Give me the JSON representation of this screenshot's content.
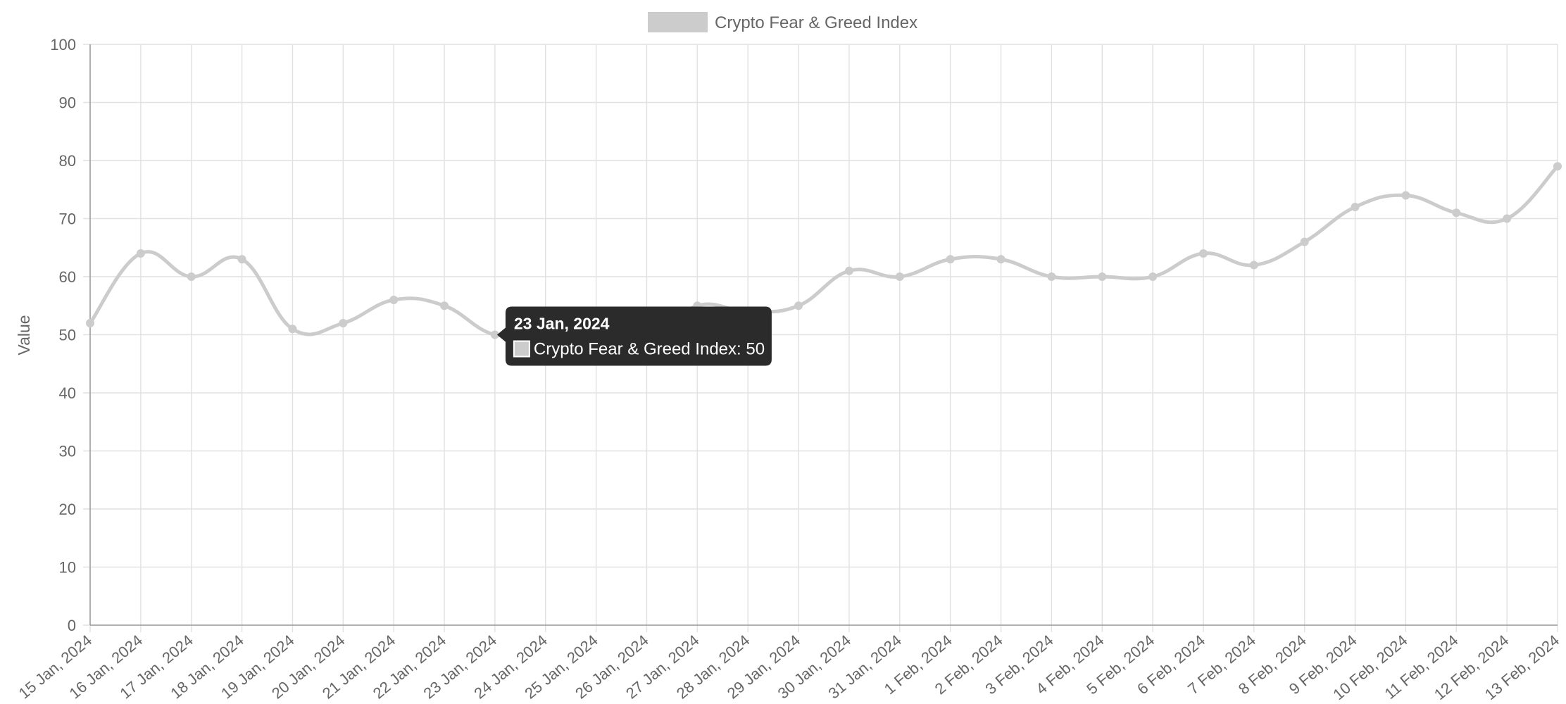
{
  "chart_data": {
    "type": "line",
    "title": "",
    "xlabel": "",
    "ylabel": "Value",
    "ylim": [
      0,
      100
    ],
    "yticks": [
      0,
      10,
      20,
      30,
      40,
      50,
      60,
      70,
      80,
      90,
      100
    ],
    "grid": true,
    "legend_position": "top-center",
    "categories": [
      "15 Jan, 2024",
      "16 Jan, 2024",
      "17 Jan, 2024",
      "18 Jan, 2024",
      "19 Jan, 2024",
      "20 Jan, 2024",
      "21 Jan, 2024",
      "22 Jan, 2024",
      "23 Jan, 2024",
      "24 Jan, 2024",
      "25 Jan, 2024",
      "26 Jan, 2024",
      "27 Jan, 2024",
      "28 Jan, 2024",
      "29 Jan, 2024",
      "30 Jan, 2024",
      "31 Jan, 2024",
      "1 Feb, 2024",
      "2 Feb, 2024",
      "3 Feb, 2024",
      "4 Feb, 2024",
      "5 Feb, 2024",
      "6 Feb, 2024",
      "7 Feb, 2024",
      "8 Feb, 2024",
      "9 Feb, 2024",
      "10 Feb, 2024",
      "11 Feb, 2024",
      "12 Feb, 2024",
      "13 Feb, 2024"
    ],
    "series": [
      {
        "name": "Crypto Fear & Greed Index",
        "color": "#cccccc",
        "values": [
          52,
          64,
          60,
          63,
          51,
          52,
          56,
          55,
          50,
          51,
          51,
          49,
          55,
          54,
          55,
          61,
          60,
          63,
          63,
          60,
          60,
          60,
          64,
          62,
          66,
          72,
          74,
          71,
          70,
          79
        ]
      }
    ],
    "tooltip": {
      "title": "23 Jan, 2024",
      "body": "Crypto Fear & Greed Index: 50",
      "index": 8
    }
  },
  "colors": {
    "tooltip_bg": "#2b2b2b",
    "line": "#cccccc",
    "grid": "#e1e1e1"
  }
}
